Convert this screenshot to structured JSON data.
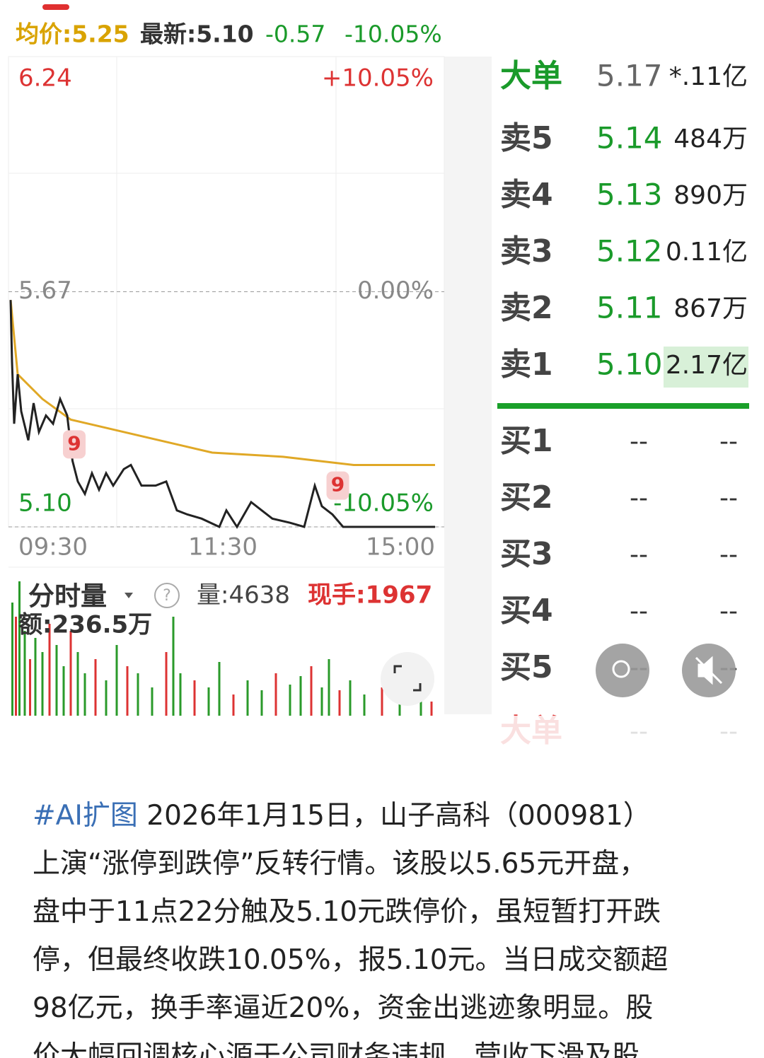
{
  "header": {
    "avg": "均价:5.25",
    "latest": "最新:5.10",
    "change": "-0.57",
    "pct": "-10.05%"
  },
  "chart_data": {
    "type": "line",
    "xlim": [
      0,
      240
    ],
    "xticks": [
      {
        "value": 0,
        "label": "09:30"
      },
      {
        "value": 120,
        "label": "11:30"
      },
      {
        "value": 240,
        "label": "15:00"
      }
    ],
    "ylim": [
      5.1,
      6.24
    ],
    "yticks": [
      {
        "value": 5.1,
        "label": "5.10"
      },
      5.67,
      6.24
    ],
    "pct_labels": [
      "-10.05%",
      "0.00%",
      "+10.05%"
    ],
    "series": [
      {
        "name": "price",
        "color": "#222222",
        "x": [
          0,
          0.8,
          2,
          4,
          6,
          10,
          13,
          16,
          20,
          24,
          28,
          32,
          35,
          38,
          42,
          46,
          50,
          54,
          58,
          64,
          68,
          74,
          82,
          88,
          94,
          100,
          108,
          118,
          122,
          128,
          136,
          142,
          148,
          158,
          166,
          172,
          176,
          182,
          188,
          240
        ],
        "values": [
          5.65,
          5.5,
          5.35,
          5.47,
          5.38,
          5.31,
          5.4,
          5.33,
          5.37,
          5.35,
          5.41,
          5.37,
          5.26,
          5.21,
          5.18,
          5.23,
          5.19,
          5.23,
          5.2,
          5.24,
          5.25,
          5.2,
          5.2,
          5.21,
          5.14,
          5.13,
          5.12,
          5.1,
          5.14,
          5.1,
          5.16,
          5.14,
          5.12,
          5.11,
          5.1,
          5.2,
          5.15,
          5.13,
          5.1,
          5.1
        ]
      },
      {
        "name": "avg",
        "color": "#e0a826",
        "x": [
          0,
          4,
          18,
          34,
          74,
          114,
          154,
          194,
          240
        ],
        "values": [
          5.65,
          5.47,
          5.41,
          5.36,
          5.32,
          5.28,
          5.27,
          5.25,
          5.25
        ]
      }
    ],
    "annotations": [
      {
        "text": "9",
        "x": 36,
        "y": 5.3
      },
      {
        "text": "9",
        "x": 185,
        "y": 5.2
      }
    ],
    "volume": {
      "vlim": [
        0,
        100
      ],
      "x": [
        1,
        3,
        5,
        8,
        11,
        14,
        18,
        22,
        26,
        30,
        34,
        38,
        42,
        48,
        54,
        60,
        66,
        72,
        80,
        88,
        92,
        96,
        104,
        112,
        118,
        126,
        134,
        142,
        150,
        158,
        164,
        170,
        176,
        180,
        186,
        192,
        200,
        210,
        220,
        232,
        238
      ],
      "values": [
        80,
        70,
        95,
        60,
        40,
        55,
        45,
        65,
        50,
        35,
        60,
        45,
        30,
        40,
        25,
        50,
        35,
        30,
        20,
        45,
        70,
        30,
        25,
        20,
        38,
        15,
        25,
        18,
        30,
        22,
        28,
        35,
        20,
        40,
        18,
        25,
        15,
        20,
        22,
        14,
        10
      ],
      "colors": [
        "#2a9a2a",
        "#d33",
        "#2a9a2a",
        "#2a9a2a",
        "#d33",
        "#2a9a2a",
        "#2a9a2a",
        "#d33",
        "#2a9a2a",
        "#2a9a2a",
        "#d33",
        "#2a9a2a",
        "#2a9a2a",
        "#d33",
        "#2a9a2a",
        "#2a9a2a",
        "#d33",
        "#2a9a2a",
        "#2a9a2a",
        "#d33",
        "#2a9a2a",
        "#2a9a2a",
        "#d33",
        "#2a9a2a",
        "#2a9a2a",
        "#d33",
        "#2a9a2a",
        "#2a9a2a",
        "#d33",
        "#2a9a2a",
        "#2a9a2a",
        "#d33",
        "#2a9a2a",
        "#2a9a2a",
        "#d33",
        "#2a9a2a",
        "#2a9a2a",
        "#d33",
        "#2a9a2a",
        "#2a9a2a",
        "#d33"
      ]
    }
  },
  "volume_panel": {
    "title": "分时量",
    "qty": "量:4638",
    "hand": "现手:1967",
    "amount": "额:236.5万"
  },
  "order_book": {
    "top": {
      "label": "大单",
      "price": "5.17",
      "amount": "*.11亿"
    },
    "asks": [
      {
        "label": "卖5",
        "price": "5.14",
        "amount": "484万"
      },
      {
        "label": "卖4",
        "price": "5.13",
        "amount": "890万"
      },
      {
        "label": "卖3",
        "price": "5.12",
        "amount": "0.11亿"
      },
      {
        "label": "卖2",
        "price": "5.11",
        "amount": "867万"
      },
      {
        "label": "卖1",
        "price": "5.10",
        "amount": "2.17亿"
      }
    ],
    "bids": [
      {
        "label": "买1",
        "price": "--",
        "amount": "--"
      },
      {
        "label": "买2",
        "price": "--",
        "amount": "--"
      },
      {
        "label": "买3",
        "price": "--",
        "amount": "--"
      },
      {
        "label": "买4",
        "price": "--",
        "amount": "--"
      },
      {
        "label": "买5",
        "price": "--",
        "amount": "--"
      }
    ],
    "bottom": {
      "label": "大单",
      "price": "--",
      "amount": "--"
    }
  },
  "post": {
    "hashtag": "#AI扩图",
    "lines": [
      "2026年1月15日，山子高科（000981）",
      "上演“涨停到跌停”反转行情。该股以5.65元开盘，",
      "盘中于11点22分触及5.10元跌停价，虽短暂打开跌",
      "停，但最终收跌10.05%，报5.10元。当日成交额超",
      "98亿元，换手率逼近20%，资金出逃迹象明显。股",
      "价大幅回调核心源于公司财务违规、营收下滑及股"
    ]
  }
}
